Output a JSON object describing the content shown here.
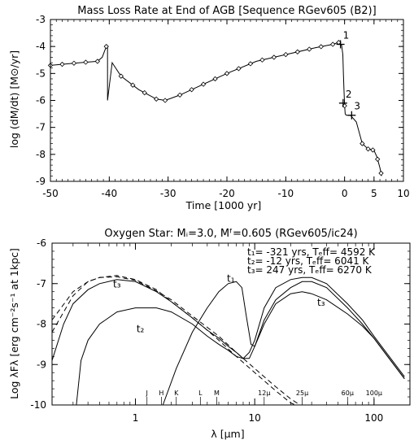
{
  "chart_data": [
    {
      "type": "line",
      "title": "Mass Loss Rate at End of AGB  [Sequence RGev605 (B2)]",
      "xlabel": "Time [1000 yr]",
      "ylabel": "log (dM/dt)  [M⊙/yr]",
      "xlim": [
        -50,
        10
      ],
      "ylim": [
        -9,
        -3
      ],
      "x_ticks": [
        "-50",
        "-40",
        "-30",
        "-20",
        "-10",
        "0",
        "5",
        "10"
      ],
      "x_tick_values": [
        -50,
        -40,
        -30,
        -20,
        -10,
        0,
        5,
        10
      ],
      "y_ticks": [
        "-3",
        "-4",
        "-5",
        "-6",
        "-7",
        "-8",
        "-9"
      ],
      "y_tick_values": [
        -3,
        -4,
        -5,
        -6,
        -7,
        -8,
        -9
      ],
      "series": [
        {
          "x": [
            -50,
            -45,
            -42,
            -41.2,
            -40.5,
            -40.3,
            -40.3,
            -39.5,
            -38,
            -35,
            -32,
            -30.5,
            -28,
            -25,
            -20,
            -15,
            -10,
            -5,
            -2,
            -1,
            -0.5,
            -0.3,
            -0.2,
            -0.1,
            0,
            0.1,
            0.3,
            0.6,
            1,
            2,
            3,
            4,
            4.5,
            5,
            5.5,
            6,
            6.3
          ],
          "y": [
            -4.7,
            -4.6,
            -4.55,
            -4.4,
            -4.0,
            -4.0,
            -6.0,
            -4.6,
            -5.1,
            -5.6,
            -5.95,
            -6.0,
            -5.8,
            -5.5,
            -5.0,
            -4.55,
            -4.3,
            -4.05,
            -3.92,
            -3.85,
            -3.95,
            -4.3,
            -5.0,
            -5.6,
            -6.2,
            -6.5,
            -6.55,
            -6.55,
            -6.55,
            -6.8,
            -7.6,
            -7.8,
            -7.82,
            -7.85,
            -8.1,
            -8.5,
            -8.8
          ]
        }
      ],
      "markers_x": [
        -50,
        -48,
        -46,
        -44,
        -42,
        -40.5,
        -38,
        -36,
        -34,
        -32,
        -30.5,
        -28,
        -26,
        -24,
        -22,
        -20,
        -18,
        -16,
        -14,
        -12,
        -10,
        -8,
        -6,
        -4,
        -2,
        -1,
        0,
        3,
        4,
        4.8,
        5.6,
        6.2
      ],
      "marks": [
        {
          "label": "1",
          "x": -0.7,
          "y": -3.92
        },
        {
          "label": "2",
          "x": -0.25,
          "y": -6.1
        },
        {
          "label": "3",
          "x": 1.2,
          "y": -6.55
        }
      ]
    },
    {
      "type": "line",
      "title": "Oxygen Star: Mᵢ=3.0, Mᶠ=0.605 (RGev605/ic24)",
      "xlabel": "λ  [μm]",
      "ylabel": "Log λFλ  [erg cm⁻²s⁻¹ at 1kpc]",
      "xscale": "log",
      "xlim": [
        0.2,
        200
      ],
      "ylim": [
        -10,
        -6
      ],
      "x_ticks": [
        "1",
        "10",
        "100"
      ],
      "x_tick_values": [
        1,
        10,
        100
      ],
      "y_ticks": [
        "-6",
        "-7",
        "-8",
        "-9",
        "-10"
      ],
      "y_tick_values": [
        -6,
        -7,
        -8,
        -9,
        -10
      ],
      "legend": [
        "t₁=  -321 yrs, Tₑff= 4592 K",
        "t₂=   -12 yrs, Tₑff= 6041 K",
        "t₃=   247 yrs, Tₑff= 6270 K"
      ],
      "band_labels": [
        "J",
        "H",
        "K",
        "L",
        "M",
        "12μ",
        "25μ",
        "60μ",
        "100μ"
      ],
      "band_positions": [
        1.25,
        1.65,
        2.2,
        3.5,
        4.8,
        12,
        25,
        60,
        100
      ],
      "curve_labels": [
        {
          "label": "t₁",
          "x": 6.3,
          "y": -6.95
        },
        {
          "label": "t₃",
          "x": 0.7,
          "y": -7.1
        },
        {
          "label": "t₂",
          "x": 1.1,
          "y": -8.2
        },
        {
          "label": "t₃",
          "x": 36,
          "y": -7.55
        }
      ],
      "series": [
        {
          "label": "t₁",
          "x": [
            1.7,
            2.2,
            3,
            4,
            5,
            6,
            7,
            7.8,
            8.5,
            9.3,
            10,
            12,
            15,
            20,
            25,
            30,
            40,
            60,
            80,
            100,
            130,
            180
          ],
          "y": [
            -10,
            -9.1,
            -8.2,
            -7.6,
            -7.2,
            -7.0,
            -6.95,
            -7.1,
            -7.8,
            -8.5,
            -8.55,
            -7.9,
            -7.4,
            -7.1,
            -6.95,
            -6.95,
            -7.1,
            -7.6,
            -8.0,
            -8.35,
            -8.8,
            -9.35
          ]
        },
        {
          "label": "t₂",
          "x": [
            0.32,
            0.35,
            0.4,
            0.5,
            0.7,
            1,
            1.5,
            2,
            3,
            4,
            5,
            6,
            7,
            8,
            9,
            10,
            12,
            15,
            20,
            25,
            30,
            40,
            60,
            80,
            100,
            130,
            180
          ],
          "y": [
            -10,
            -8.9,
            -8.4,
            -8.0,
            -7.7,
            -7.6,
            -7.6,
            -7.7,
            -8.0,
            -8.3,
            -8.5,
            -8.65,
            -8.8,
            -8.85,
            -8.7,
            -8.4,
            -7.6,
            -7.1,
            -6.9,
            -6.85,
            -6.85,
            -7.0,
            -7.5,
            -7.9,
            -8.3,
            -8.75,
            -9.3
          ]
        },
        {
          "label": "t₃",
          "x": [
            0.2,
            0.25,
            0.3,
            0.4,
            0.5,
            0.7,
            1,
            1.5,
            2,
            3,
            4,
            5,
            6,
            7,
            8,
            9,
            10,
            12,
            15,
            20,
            25,
            30,
            40,
            60,
            80,
            100,
            130,
            180
          ],
          "y": [
            -8.9,
            -8.0,
            -7.5,
            -7.15,
            -7.0,
            -6.9,
            -6.95,
            -7.2,
            -7.45,
            -7.85,
            -8.15,
            -8.35,
            -8.55,
            -8.7,
            -8.85,
            -8.85,
            -8.55,
            -8.0,
            -7.5,
            -7.25,
            -7.2,
            -7.25,
            -7.4,
            -7.75,
            -8.05,
            -8.35,
            -8.8,
            -9.35
          ]
        },
        {
          "label": "dashed-1",
          "dashed": true,
          "x": [
            0.2,
            0.3,
            0.4,
            0.5,
            0.7,
            1,
            1.5,
            2,
            3,
            4,
            5,
            7,
            10,
            15,
            20,
            22
          ],
          "y": [
            -8.2,
            -7.3,
            -6.95,
            -6.85,
            -6.8,
            -6.9,
            -7.15,
            -7.45,
            -7.85,
            -8.15,
            -8.4,
            -8.8,
            -9.2,
            -9.65,
            -9.95,
            -10
          ]
        },
        {
          "label": "dashed-2",
          "dashed": true,
          "x": [
            0.2,
            0.3,
            0.4,
            0.5,
            0.7,
            1,
            1.5,
            2,
            3,
            4,
            5,
            7,
            10,
            15,
            20,
            24
          ],
          "y": [
            -7.9,
            -7.2,
            -6.95,
            -6.85,
            -6.83,
            -6.92,
            -7.18,
            -7.4,
            -7.8,
            -8.08,
            -8.3,
            -8.7,
            -9.1,
            -9.55,
            -9.85,
            -10
          ]
        }
      ]
    }
  ]
}
